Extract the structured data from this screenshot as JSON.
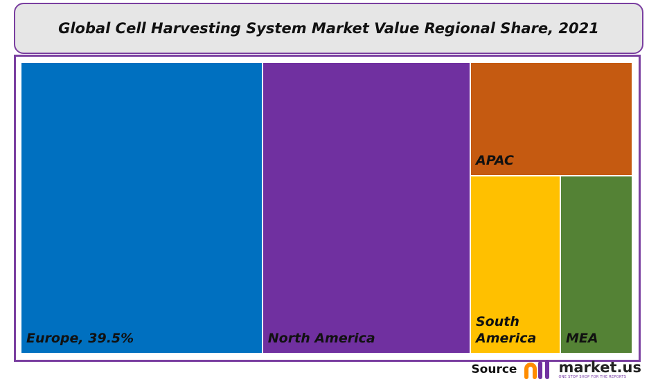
{
  "chart_data": {
    "type": "treemap",
    "title": "Global Cell Harvesting System Market Value Regional Share, 2021",
    "categories": [
      "Europe, 39.5%",
      "North America",
      "APAC",
      "South America",
      "MEA"
    ],
    "values": [
      39.5,
      34.0,
      10.3,
      9.0,
      7.2
    ],
    "colors": [
      "#0070c0",
      "#7030a0",
      "#c55a11",
      "#ffc000",
      "#548235"
    ]
  },
  "source": {
    "label": "Source",
    "brand": "market.us",
    "tagline": "ONE STOP SHOP FOR THE REPORTS"
  }
}
